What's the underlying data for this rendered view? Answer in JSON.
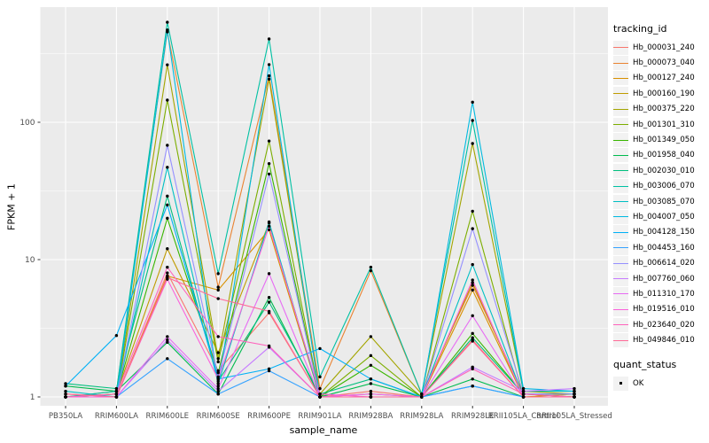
{
  "figure": {
    "background": "#FFFFFF",
    "panel_background": "#EBEBEB",
    "grid_color": "#FFFFFF",
    "axis_text_color": "#4D4D4D",
    "tick_color": "#333333"
  },
  "chart_data": {
    "type": "line",
    "xlabel": "sample_name",
    "ylabel": "FPKM + 1",
    "y_scale": "log10",
    "y_ticks": [
      1,
      10,
      100
    ],
    "y_minor_ticks": [
      3.162,
      31.623,
      316.228
    ],
    "ylim": [
      0.86,
      670
    ],
    "grid": true,
    "legend_position": "right",
    "point_marker": "small-black-point",
    "categories": [
      "PB350LA",
      "RRIM600LA",
      "RRIM600LE",
      "RRIM600SE",
      "RRIM600PE",
      "RRIM901LA",
      "RRIM928BA",
      "RRIM928LA",
      "RRIM928LE",
      "RRII105LA_Control",
      "RRII105LA_Stressed"
    ],
    "series": [
      {
        "name": "Hb_000031_240",
        "color": "#F8766D",
        "values": [
          1.05,
          1.0,
          8.0,
          1.55,
          4.1,
          1.0,
          1.1,
          1.0,
          2.6,
          1.0,
          1.0
        ]
      },
      {
        "name": "Hb_000073_040",
        "color": "#EA8331",
        "values": [
          1.0,
          1.1,
          455,
          6.3,
          218,
          1.15,
          8.3,
          1.05,
          6.5,
          1.05,
          1.0
        ]
      },
      {
        "name": "Hb_000127_240",
        "color": "#D89000",
        "values": [
          1.0,
          1.0,
          7.6,
          6.0,
          16.5,
          1.0,
          1.05,
          1.0,
          6.0,
          1.0,
          1.05
        ]
      },
      {
        "name": "Hb_000160_190",
        "color": "#C09B00",
        "values": [
          1.0,
          1.05,
          12.0,
          2.1,
          18.5,
          1.0,
          1.0,
          1.0,
          6.8,
          1.0,
          1.0
        ]
      },
      {
        "name": "Hb_000375_220",
        "color": "#A3A500",
        "values": [
          1.0,
          1.0,
          262,
          1.9,
          206,
          1.05,
          2.75,
          1.05,
          70,
          1.1,
          1.05
        ]
      },
      {
        "name": "Hb_001301_310",
        "color": "#7CAE00",
        "values": [
          1.0,
          1.0,
          145,
          1.8,
          73,
          1.0,
          2.0,
          1.0,
          22.5,
          1.0,
          1.0
        ]
      },
      {
        "name": "Hb_001349_050",
        "color": "#39B600",
        "values": [
          1.0,
          1.05,
          20.0,
          1.5,
          50,
          1.0,
          1.7,
          1.0,
          2.9,
          1.05,
          1.0
        ]
      },
      {
        "name": "Hb_001958_040",
        "color": "#00BB4E",
        "values": [
          1.2,
          1.1,
          2.5,
          1.05,
          5.3,
          1.0,
          1.25,
          1.0,
          1.35,
          1.0,
          1.0
        ]
      },
      {
        "name": "Hb_002030_010",
        "color": "#00BF7D",
        "values": [
          1.25,
          1.15,
          29,
          1.3,
          4.9,
          1.05,
          1.35,
          1.0,
          2.7,
          1.05,
          1.05
        ]
      },
      {
        "name": "Hb_003006_070",
        "color": "#00C1A3",
        "values": [
          1.0,
          1.1,
          535,
          7.9,
          404,
          1.4,
          8.8,
          1.05,
          103,
          1.1,
          1.1
        ]
      },
      {
        "name": "Hb_003085_070",
        "color": "#00BFC4",
        "values": [
          1.1,
          1.0,
          47,
          1.25,
          18.8,
          1.0,
          1.0,
          1.0,
          9.2,
          1.0,
          1.0
        ]
      },
      {
        "name": "Hb_004007_050",
        "color": "#00BAE0",
        "values": [
          1.0,
          1.0,
          470,
          1.2,
          263,
          1.0,
          1.0,
          1.0,
          140,
          1.15,
          1.1
        ]
      },
      {
        "name": "Hb_004128_150",
        "color": "#00B0F6",
        "values": [
          1.2,
          2.8,
          25,
          1.35,
          1.6,
          2.25,
          1.35,
          1.0,
          1.2,
          1.0,
          1.0
        ]
      },
      {
        "name": "Hb_004453_160",
        "color": "#35A2FF",
        "values": [
          1.0,
          1.0,
          1.9,
          1.05,
          1.55,
          1.0,
          1.0,
          1.0,
          1.2,
          1.0,
          1.0
        ]
      },
      {
        "name": "Hb_006614_020",
        "color": "#9590FF",
        "values": [
          1.0,
          1.0,
          68,
          1.4,
          42,
          1.0,
          1.0,
          1.0,
          16.8,
          1.05,
          1.05
        ]
      },
      {
        "name": "Hb_007760_060",
        "color": "#C77CFF",
        "values": [
          1.0,
          1.0,
          2.6,
          1.1,
          2.3,
          1.0,
          1.0,
          1.0,
          1.65,
          1.1,
          1.15
        ]
      },
      {
        "name": "Hb_011310_170",
        "color": "#E76BF3",
        "values": [
          1.0,
          1.0,
          2.75,
          1.15,
          7.9,
          1.0,
          1.05,
          1.0,
          3.9,
          1.0,
          1.0
        ]
      },
      {
        "name": "Hb_019516_010",
        "color": "#FA62DB",
        "values": [
          1.0,
          1.0,
          7.2,
          1.35,
          17.5,
          1.05,
          1.0,
          1.0,
          7.1,
          1.0,
          1.0
        ]
      },
      {
        "name": "Hb_023640_020",
        "color": "#FF62BC",
        "values": [
          1.0,
          1.05,
          8.8,
          2.75,
          2.35,
          1.0,
          1.0,
          1.0,
          1.6,
          1.05,
          1.0
        ]
      },
      {
        "name": "Hb_049846_010",
        "color": "#FF6A98",
        "values": [
          1.05,
          1.0,
          7.4,
          5.2,
          4.2,
          1.0,
          1.0,
          1.0,
          2.55,
          1.0,
          1.0
        ]
      }
    ],
    "legend": {
      "color_title": "tracking_id",
      "shape_title": "quant_status",
      "shape_items": [
        {
          "label": "OK"
        }
      ]
    }
  }
}
